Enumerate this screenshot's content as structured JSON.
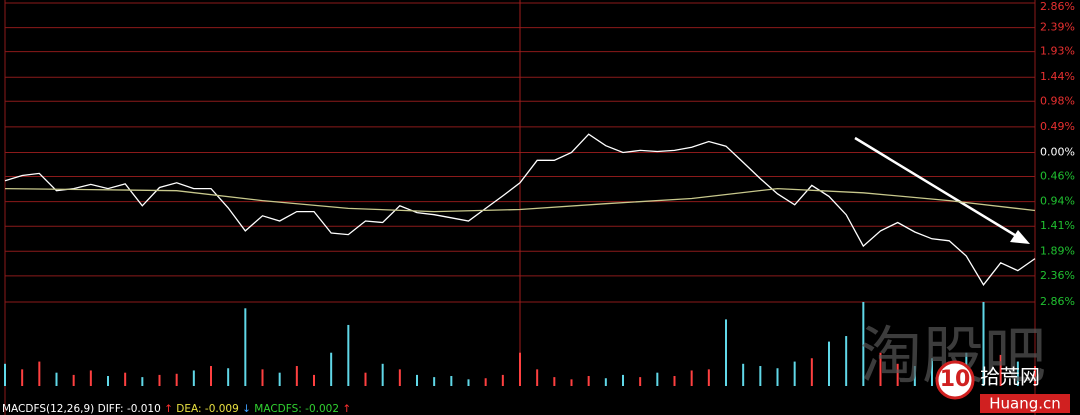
{
  "chart_data": [
    {
      "type": "line",
      "xlim": [
        0,
        240
      ],
      "xticks": [
        120
      ],
      "ylim": [
        -2.86,
        2.86
      ],
      "yticks": [
        {
          "value": 2.86,
          "label": "2.86%"
        },
        {
          "value": 2.39,
          "label": "2.39%"
        },
        {
          "value": 1.93,
          "label": "1.93%"
        },
        {
          "value": 1.44,
          "label": "1.44%"
        },
        {
          "value": 0.98,
          "label": "0.98%"
        },
        {
          "value": 0.49,
          "label": "0.49%"
        },
        {
          "value": 0,
          "label": "0.00%"
        },
        {
          "value": -0.46,
          "label": "0.46%"
        },
        {
          "value": -0.94,
          "label": "0.94%"
        },
        {
          "value": -1.41,
          "label": "1.41%"
        },
        {
          "value": -1.89,
          "label": "1.89%"
        },
        {
          "value": -2.36,
          "label": "2.36%"
        },
        {
          "value": -2.86,
          "label": "2.86%"
        }
      ],
      "grid": true,
      "series": [
        {
          "color": "#ffffff",
          "x": [
            0,
            4,
            8,
            12,
            16,
            20,
            24,
            28,
            32,
            36,
            40,
            44,
            48,
            52,
            56,
            60,
            64,
            68,
            72,
            76,
            80,
            84,
            88,
            92,
            96,
            100,
            104,
            108,
            112,
            116,
            120,
            124,
            128,
            132,
            136,
            140,
            144,
            148,
            152,
            156,
            160,
            164,
            168,
            172,
            176,
            180,
            184,
            188,
            192,
            196,
            200,
            204,
            208,
            212,
            216,
            220,
            224,
            228,
            232,
            236,
            240
          ],
          "values": [
            -0.54,
            -0.44,
            -0.4,
            -0.73,
            -0.69,
            -0.61,
            -0.69,
            -0.6,
            -1.02,
            -0.67,
            -0.58,
            -0.69,
            -0.69,
            -1.06,
            -1.5,
            -1.21,
            -1.31,
            -1.13,
            -1.13,
            -1.54,
            -1.57,
            -1.31,
            -1.34,
            -1.02,
            -1.15,
            -1.19,
            -1.25,
            -1.31,
            -1.07,
            -0.83,
            -0.58,
            -0.15,
            -0.15,
            0,
            0.35,
            0.13,
            0,
            0.04,
            0.02,
            0.04,
            0.1,
            0.21,
            0.12,
            -0.19,
            -0.5,
            -0.79,
            -1.0,
            -0.63,
            -0.84,
            -1.19,
            -1.79,
            -1.5,
            -1.34,
            -1.52,
            -1.65,
            -1.69,
            -1.98,
            -2.53,
            -2.11,
            -2.26,
            -2.03
          ]
        },
        {
          "color": "#c8c88c",
          "x": [
            0,
            20,
            40,
            60,
            80,
            100,
            120,
            140,
            160,
            180,
            200,
            220,
            240
          ],
          "values": [
            -0.69,
            -0.71,
            -0.73,
            -0.92,
            -1.07,
            -1.13,
            -1.09,
            -0.98,
            -0.88,
            -0.69,
            -0.77,
            -0.92,
            -1.11
          ]
        }
      ]
    },
    {
      "type": "bar",
      "xlim": [
        0,
        240
      ],
      "ylim": [
        0,
        100
      ],
      "x": [
        0,
        4,
        8,
        12,
        16,
        20,
        24,
        28,
        32,
        36,
        40,
        44,
        48,
        52,
        56,
        60,
        64,
        68,
        72,
        76,
        80,
        84,
        88,
        92,
        96,
        100,
        104,
        108,
        112,
        116,
        120,
        124,
        128,
        132,
        136,
        140,
        144,
        148,
        152,
        156,
        160,
        164,
        168,
        172,
        176,
        180,
        184,
        188,
        192,
        196,
        200,
        204,
        208,
        212,
        216,
        220,
        224,
        228,
        232,
        236,
        240
      ],
      "values": [
        20,
        15,
        22,
        12,
        10,
        14,
        9,
        12,
        8,
        10,
        11,
        14,
        18,
        16,
        70,
        15,
        12,
        18,
        10,
        30,
        55,
        12,
        20,
        15,
        10,
        8,
        9,
        6,
        7,
        10,
        30,
        15,
        8,
        6,
        9,
        7,
        10,
        8,
        12,
        9,
        14,
        15,
        60,
        20,
        18,
        16,
        22,
        25,
        40,
        45,
        88,
        30,
        20,
        18,
        25,
        22,
        30,
        92,
        28,
        22,
        18
      ],
      "up_color": "#ff4040",
      "down_color": "#60d8e8"
    }
  ],
  "indicator": {
    "label": "MACDFS(12,26,9)",
    "items": [
      {
        "name": "DIFF:",
        "value": {
          "value": -0.01,
          "label": "-0.010"
        },
        "arrow": "↑",
        "color": "#ffffff",
        "arrow_color": "#ff3030"
      },
      {
        "name": "DEA:",
        "value": {
          "value": -0.009,
          "label": "-0.009"
        },
        "arrow": "↓",
        "color": "#e8e040",
        "arrow_color": "#40a0ff"
      },
      {
        "name": "MACDFS:",
        "value": {
          "value": -0.002,
          "label": "-0.002"
        },
        "arrow": "↑",
        "color": "#30d030",
        "arrow_color": "#ff3030"
      }
    ]
  },
  "watermark": {
    "main": "淘股吧",
    "badge": "10",
    "site": "拾荒网",
    "domain": "Huang.cn"
  }
}
